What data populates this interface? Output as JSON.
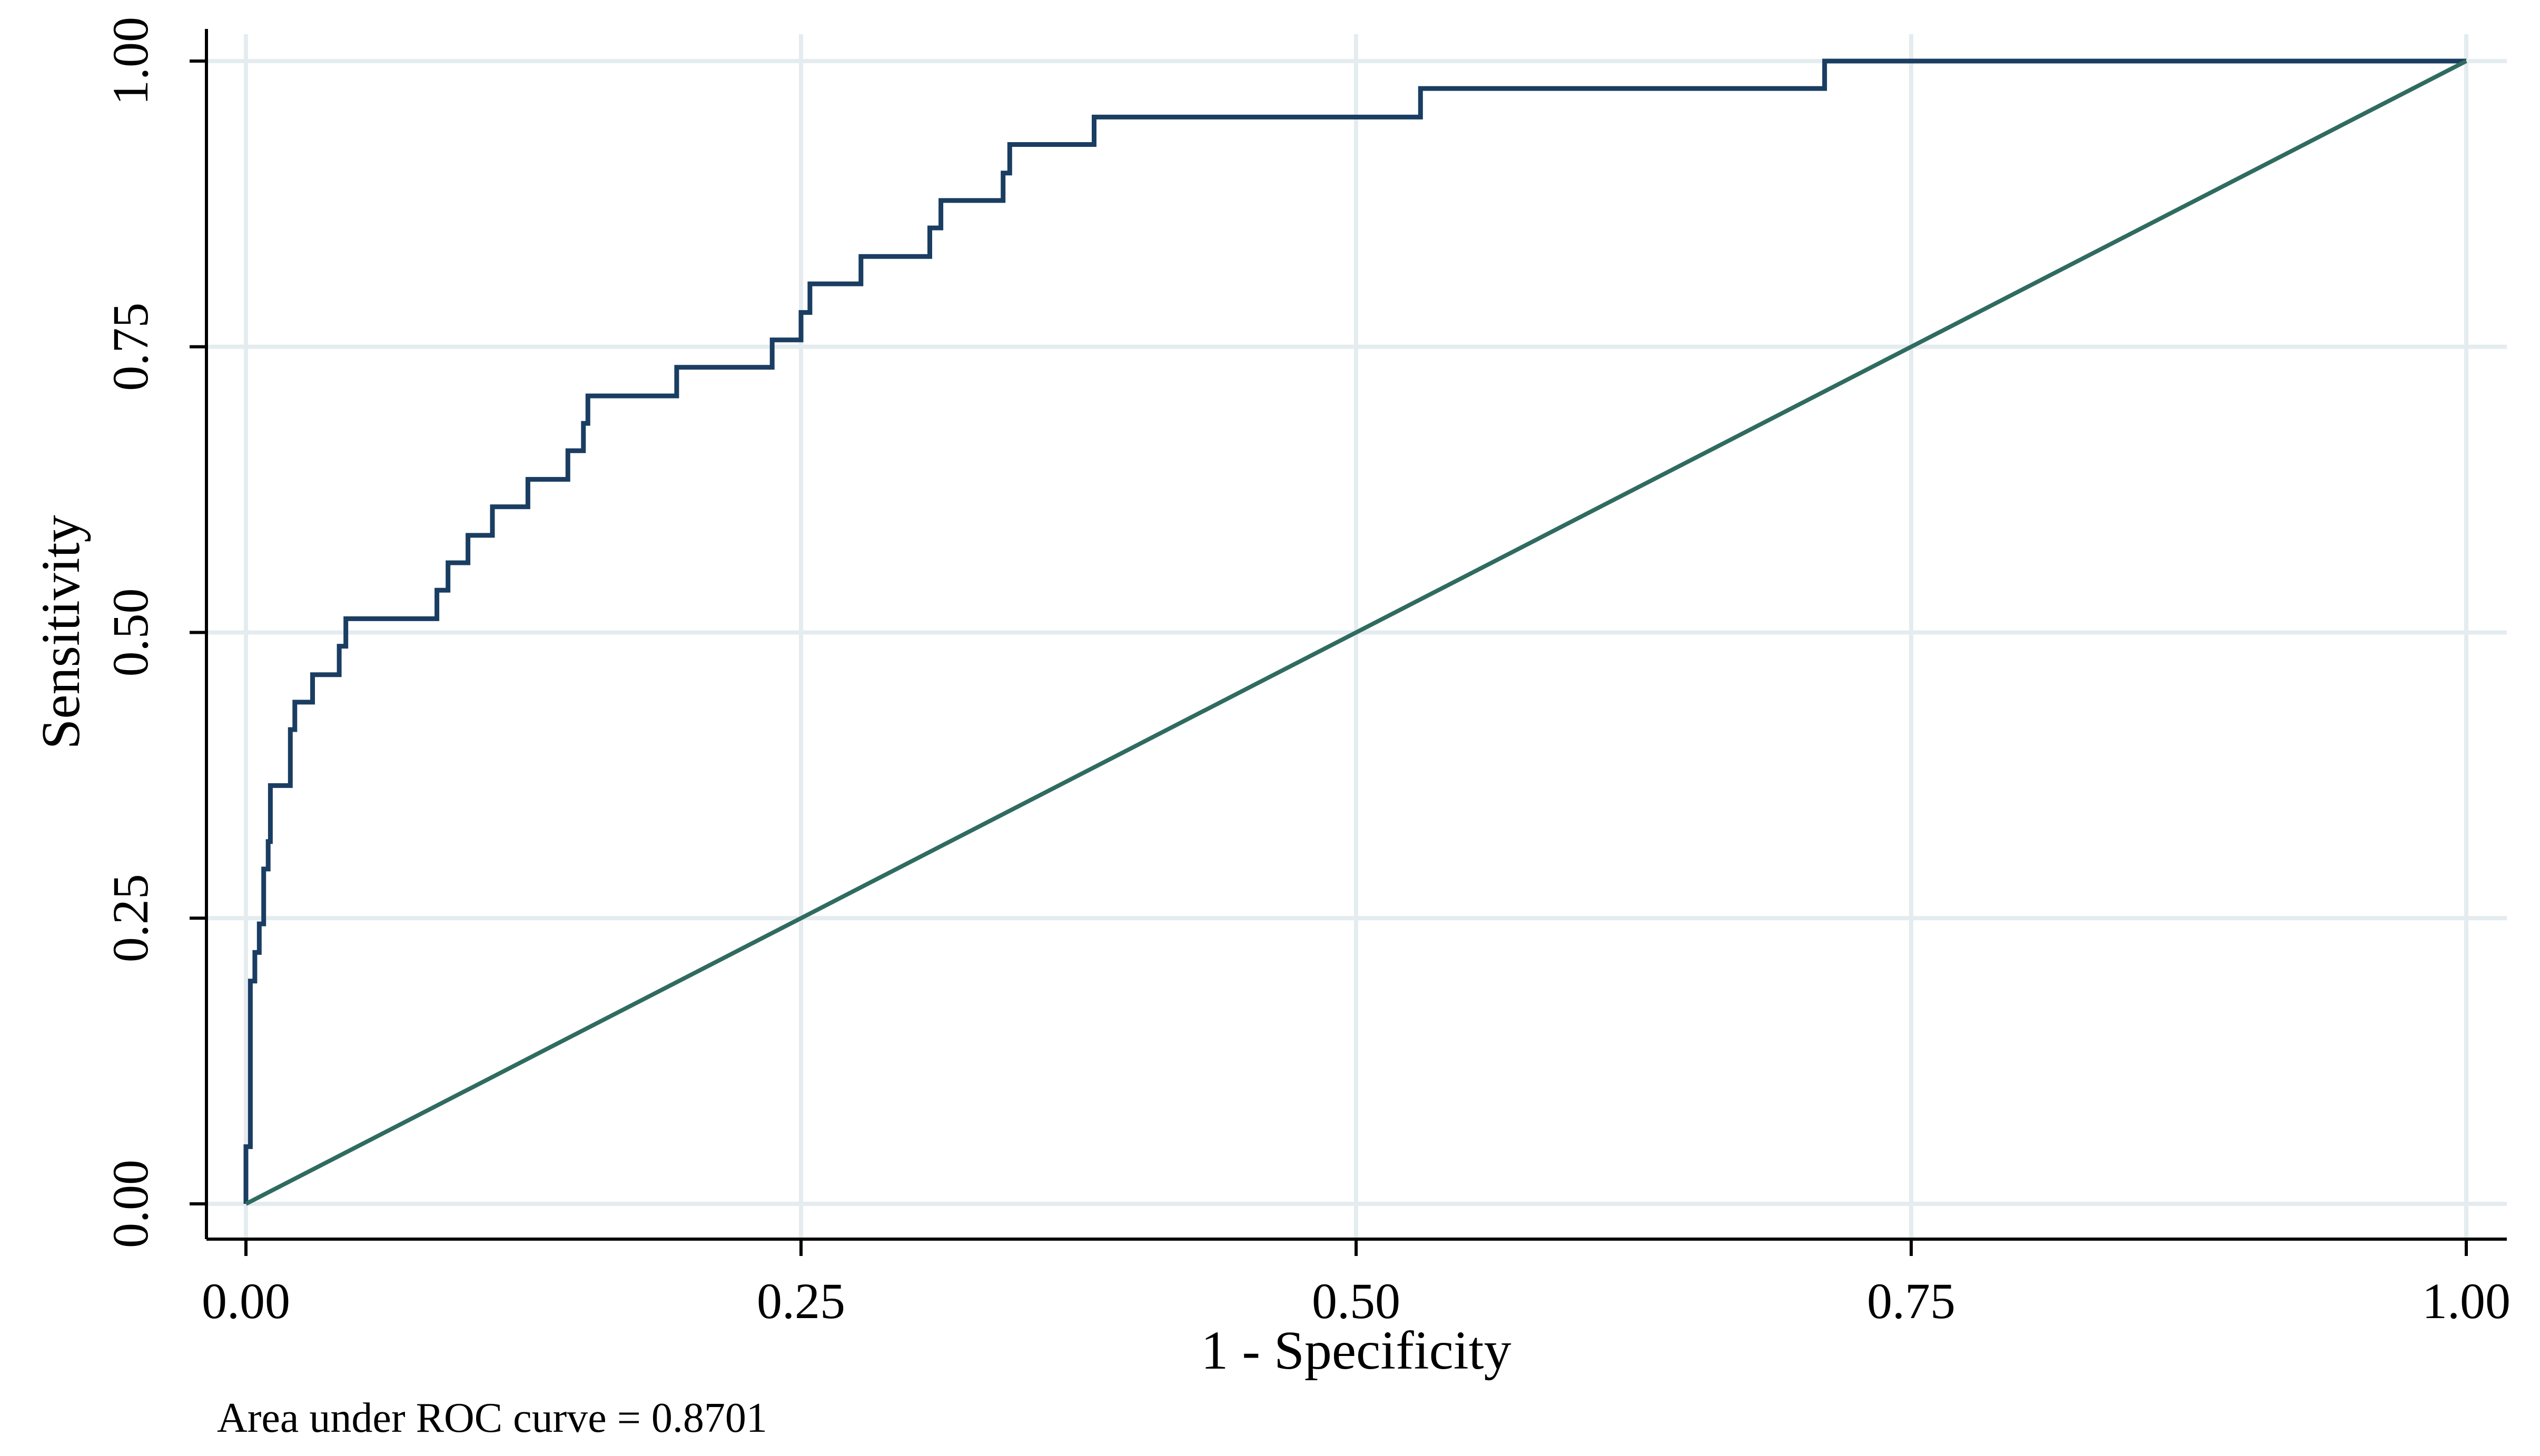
{
  "chart_data": {
    "type": "line",
    "title": "",
    "xlabel": "1 - Specificity",
    "ylabel": "Sensitivity",
    "xlim": [
      0,
      1
    ],
    "ylim": [
      0,
      1
    ],
    "xticks": [
      "0.00",
      "0.25",
      "0.50",
      "0.75",
      "1.00"
    ],
    "yticks": [
      "0.00",
      "0.25",
      "0.50",
      "0.75",
      "1.00"
    ],
    "grid": true,
    "note": "Area under ROC curve = 0.8701",
    "series": [
      {
        "role": "roc-curve",
        "color": "#1a3d62",
        "step": true,
        "points": [
          [
            0.0,
            0.0
          ],
          [
            0.0,
            0.05
          ],
          [
            0.002,
            0.05
          ],
          [
            0.002,
            0.195
          ],
          [
            0.004,
            0.195
          ],
          [
            0.004,
            0.22
          ],
          [
            0.006,
            0.22
          ],
          [
            0.006,
            0.245
          ],
          [
            0.008,
            0.245
          ],
          [
            0.008,
            0.293
          ],
          [
            0.01,
            0.293
          ],
          [
            0.01,
            0.317
          ],
          [
            0.011,
            0.317
          ],
          [
            0.011,
            0.366
          ],
          [
            0.02,
            0.366
          ],
          [
            0.02,
            0.415
          ],
          [
            0.022,
            0.415
          ],
          [
            0.022,
            0.439
          ],
          [
            0.03,
            0.439
          ],
          [
            0.03,
            0.463
          ],
          [
            0.042,
            0.463
          ],
          [
            0.042,
            0.488
          ],
          [
            0.045,
            0.488
          ],
          [
            0.045,
            0.512
          ],
          [
            0.086,
            0.512
          ],
          [
            0.086,
            0.537
          ],
          [
            0.091,
            0.537
          ],
          [
            0.091,
            0.561
          ],
          [
            0.1,
            0.561
          ],
          [
            0.1,
            0.585
          ],
          [
            0.111,
            0.585
          ],
          [
            0.111,
            0.61
          ],
          [
            0.127,
            0.61
          ],
          [
            0.127,
            0.634
          ],
          [
            0.145,
            0.634
          ],
          [
            0.145,
            0.659
          ],
          [
            0.152,
            0.659
          ],
          [
            0.152,
            0.683
          ],
          [
            0.154,
            0.683
          ],
          [
            0.154,
            0.707
          ],
          [
            0.194,
            0.707
          ],
          [
            0.194,
            0.732
          ],
          [
            0.237,
            0.732
          ],
          [
            0.237,
            0.756
          ],
          [
            0.25,
            0.756
          ],
          [
            0.25,
            0.78
          ],
          [
            0.254,
            0.78
          ],
          [
            0.254,
            0.805
          ],
          [
            0.277,
            0.805
          ],
          [
            0.277,
            0.829
          ],
          [
            0.308,
            0.829
          ],
          [
            0.308,
            0.854
          ],
          [
            0.313,
            0.854
          ],
          [
            0.313,
            0.878
          ],
          [
            0.341,
            0.878
          ],
          [
            0.341,
            0.902
          ],
          [
            0.344,
            0.902
          ],
          [
            0.344,
            0.927
          ],
          [
            0.382,
            0.927
          ],
          [
            0.382,
            0.951
          ],
          [
            0.529,
            0.951
          ],
          [
            0.529,
            0.976
          ],
          [
            0.711,
            0.976
          ],
          [
            0.711,
            1.0
          ],
          [
            1.0,
            1.0
          ]
        ]
      },
      {
        "role": "reference-line",
        "color": "#2f6b60",
        "points": [
          [
            0,
            0
          ],
          [
            1,
            1
          ]
        ]
      }
    ]
  }
}
